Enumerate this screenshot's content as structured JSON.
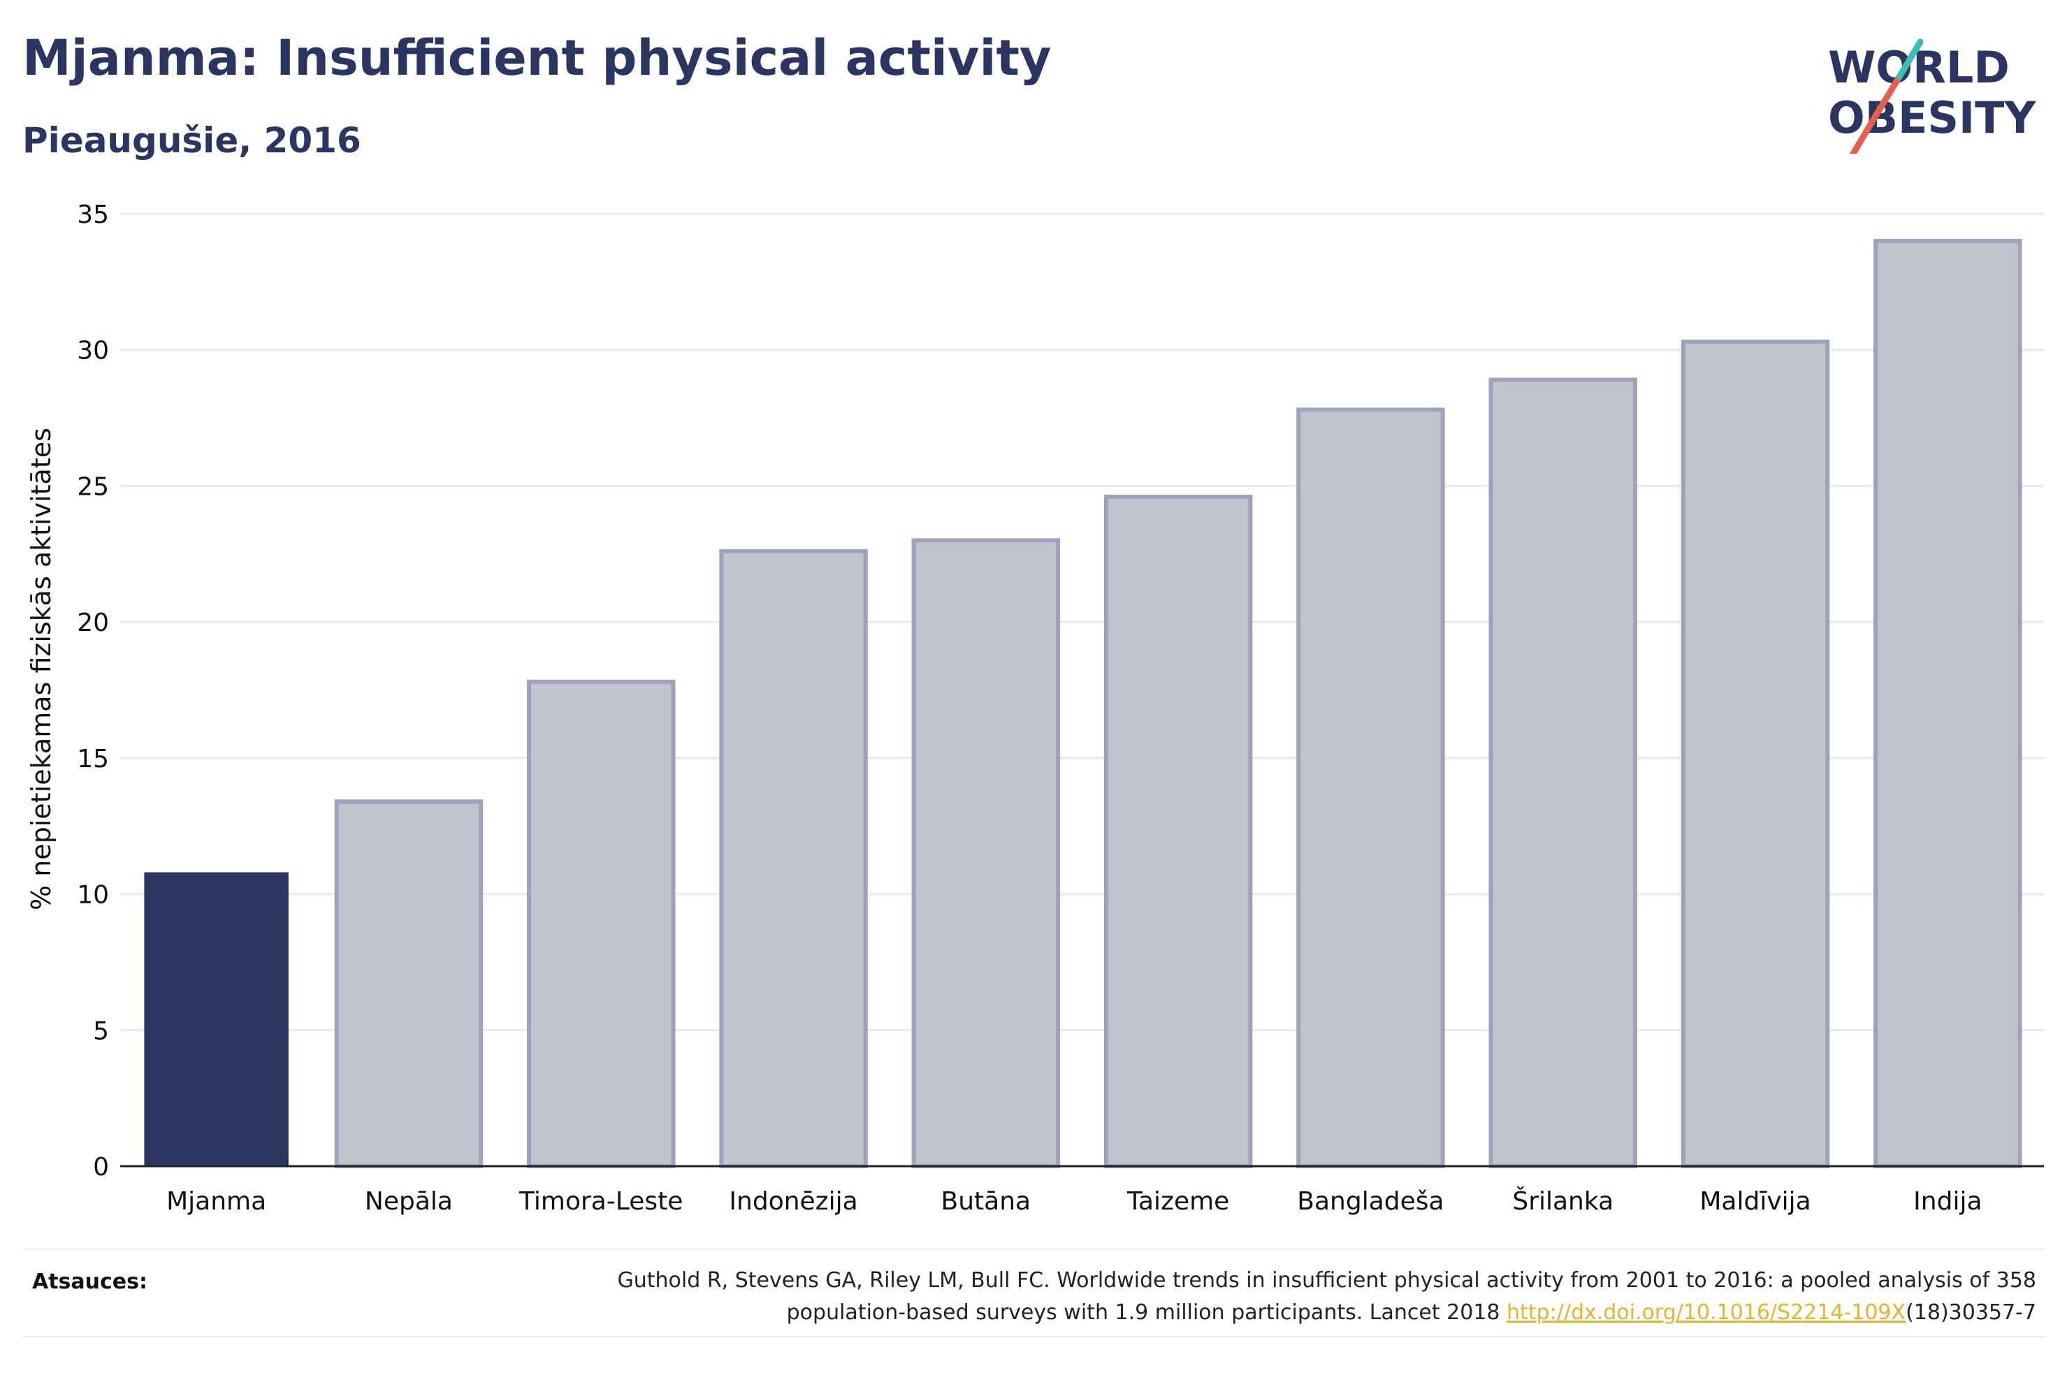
{
  "title": "Mjanma: Insufficient physical activity",
  "subtitle": "Pieaugušie, 2016",
  "logo": {
    "line1": "WORLD",
    "line2": "OBESITY",
    "accent_teal": "#3bbfb5",
    "accent_coral": "#e8604c"
  },
  "chart_data": {
    "type": "bar",
    "categories": [
      "Mjanma",
      "Nepāla",
      "Timora-Leste",
      "Indonēzija",
      "Butāna",
      "Taizeme",
      "Bangladeša",
      "Šrilanka",
      "Maldīvija",
      "Indija"
    ],
    "values": [
      10.8,
      13.4,
      17.8,
      22.6,
      23.0,
      24.6,
      27.8,
      28.9,
      30.3,
      34.0
    ],
    "highlight_index": 0,
    "ylabel": "% nepietiekamas fiziskās aktivitātes",
    "ylim": [
      0,
      35
    ],
    "yticks": [
      "0",
      "5",
      "10",
      "15",
      "20",
      "25",
      "30",
      "35"
    ],
    "grid": true,
    "colors": {
      "highlight": "#2a3561",
      "other_fill": "#c0c3ce",
      "other_edge": "#9ea3ba"
    }
  },
  "footer": {
    "sources_label": "Atsauces:",
    "citation_line1": "Guthold R, Stevens GA, Riley LM, Bull FC. Worldwide trends in insufficient physical activity from 2001 to 2016: a pooled analysis of 358",
    "citation_line2_prefix": "population-based surveys with 1.9 million participants. Lancet 2018 ",
    "citation_link": "http://dx.doi.org/10.1016/S2214-109X",
    "citation_line2_suffix": "(18)30357-7"
  }
}
